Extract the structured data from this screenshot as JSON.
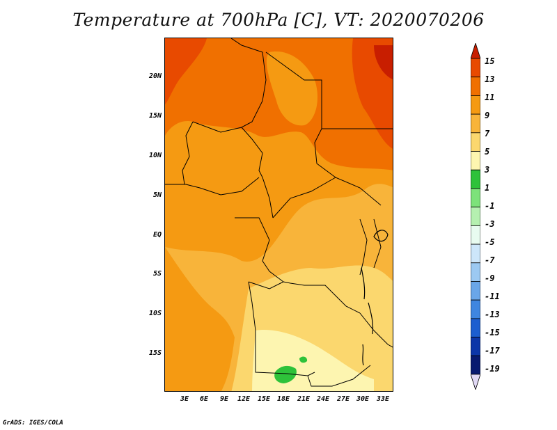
{
  "title": "Temperature at 700hPa [C], VT: 2020070206",
  "credit": "GrADS: IGES/COLA",
  "map": {
    "lat_labels": [
      "20N",
      "15N",
      "10N",
      "5N",
      "EQ",
      "5S",
      "10S",
      "15S"
    ],
    "lon_labels": [
      "3E",
      "6E",
      "9E",
      "12E",
      "15E",
      "18E",
      "21E",
      "24E",
      "27E",
      "30E",
      "33E"
    ],
    "lon_range": [
      0,
      34.5
    ],
    "lat_range": [
      -19.5,
      25
    ]
  },
  "colorbar": {
    "labels": [
      "15",
      "13",
      "11",
      "9",
      "7",
      "5",
      "3",
      "1",
      "-1",
      "-3",
      "-5",
      "-7",
      "-9",
      "-11",
      "-13",
      "-15",
      "-17",
      "-19"
    ],
    "colors": [
      "#c81e00",
      "#e84a00",
      "#f07000",
      "#f59a12",
      "#f8b43a",
      "#fbd76e",
      "#fdf5b0",
      "#2ec23a",
      "#7de27a",
      "#b5f0b0",
      "#e8fbf0",
      "#cde6fa",
      "#9cc9f2",
      "#6aa6e8",
      "#3f86e0",
      "#1c5ed0",
      "#0c36a8",
      "#081a70",
      "#e0d8f4"
    ]
  }
}
